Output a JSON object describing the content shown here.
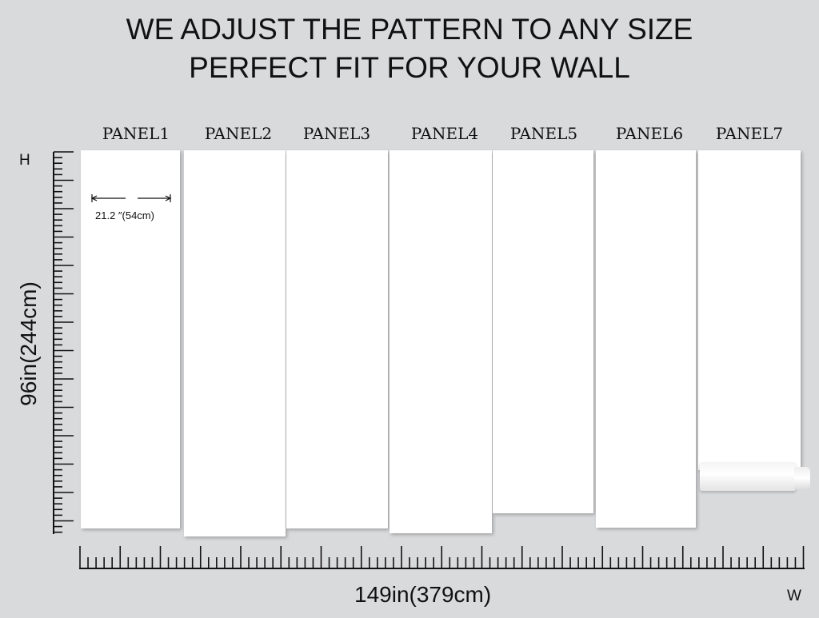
{
  "heading": {
    "line1": "WE ADJUST THE PATTERN TO ANY SIZE",
    "line2": "PERFECT FIT FOR YOUR WALL"
  },
  "panels": [
    "PANEL1",
    "PANEL2",
    "PANEL3",
    "PANEL4",
    "PANEL5",
    "PANEL6",
    "PANEL7"
  ],
  "panel_width_label": "21.2  ″(54cm)",
  "height_label": "96in(244cm)",
  "width_label": "149in(379cm)",
  "h_axis_letter": "H",
  "w_axis_letter": "W"
}
